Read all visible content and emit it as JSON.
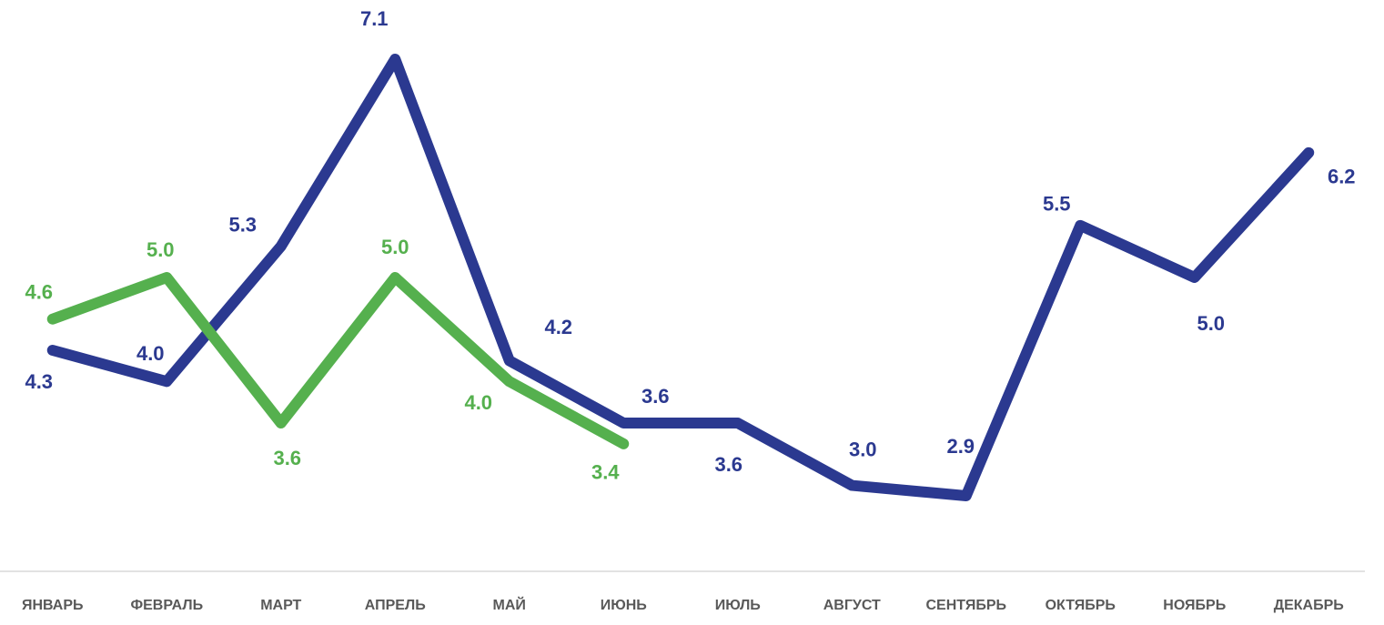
{
  "chart_data": {
    "type": "line",
    "categories": [
      "ЯНВАРЬ",
      "ФЕВРАЛЬ",
      "МАРТ",
      "АПРЕЛЬ",
      "МАЙ",
      "ИЮНЬ",
      "ИЮЛЬ",
      "АВГУСТ",
      "СЕНТЯБРЬ",
      "ОКТЯБРЬ",
      "НОЯБРЬ",
      "ДЕКАБРЬ"
    ],
    "series": [
      {
        "color": "#2b3990",
        "values": [
          4.3,
          4.0,
          5.3,
          7.1,
          4.2,
          3.6,
          3.6,
          3.0,
          2.9,
          5.5,
          5.0,
          6.2
        ],
        "value_labels": [
          "4.3",
          "4.0",
          "5.3",
          "7.1",
          "4.2",
          "3.6",
          "3.6",
          "3.0",
          "2.9",
          "5.5",
          "5.0",
          "6.2"
        ]
      },
      {
        "color": "#55b04e",
        "values": [
          4.6,
          5.0,
          3.6,
          5.0,
          4.0,
          3.4,
          null,
          null,
          null,
          null,
          null,
          null
        ],
        "value_labels": [
          "4.6",
          "5.0",
          "3.6",
          "5.0",
          "4.0",
          "3.4",
          null,
          null,
          null,
          null,
          null,
          null
        ]
      }
    ]
  }
}
